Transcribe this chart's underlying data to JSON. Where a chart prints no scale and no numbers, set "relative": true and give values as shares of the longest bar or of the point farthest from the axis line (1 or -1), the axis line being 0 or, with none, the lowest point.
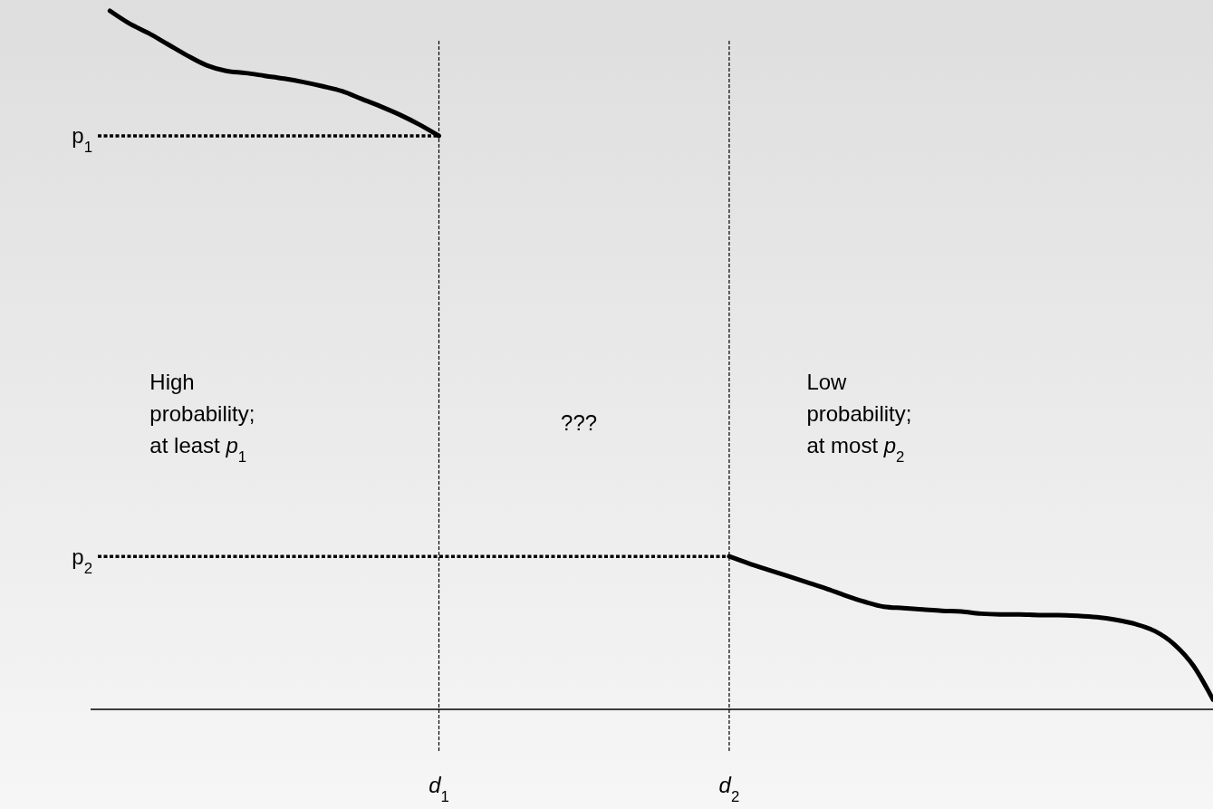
{
  "chart_data": {
    "type": "line",
    "relative": true,
    "categories": [
      null,
      null,
      null,
      null,
      null,
      null,
      null,
      null,
      null,
      null,
      null,
      null,
      null,
      null,
      null,
      null,
      null,
      null,
      "d$_{1}$",
      null,
      null,
      null,
      null,
      null,
      null,
      null,
      null,
      null,
      null,
      null,
      null,
      null,
      null,
      "d$_{2}$",
      null,
      null,
      null,
      null,
      null,
      null,
      null,
      null,
      null,
      null,
      null,
      null,
      null,
      null,
      null,
      null,
      null,
      null,
      null,
      null,
      null,
      null,
      null,
      null,
      null
    ],
    "series": [
      {
        "color": "#000000",
        "line_style": "solid",
        "values": [
          null,
          1.0,
          0.982,
          0.968,
          0.952,
          0.936,
          0.922,
          0.914,
          0.911,
          0.907,
          0.903,
          0.898,
          0.892,
          0.885,
          0.874,
          0.863,
          0.851,
          0.837,
          0.821,
          null,
          null,
          null,
          null,
          null,
          null,
          null,
          null,
          null,
          null,
          null,
          null,
          null,
          null,
          null,
          null,
          null,
          null,
          null,
          null,
          null,
          null,
          null,
          null,
          null,
          null,
          null,
          null,
          null,
          null,
          null,
          null,
          null,
          null,
          null,
          null,
          null,
          null,
          null,
          null
        ]
      },
      {
        "color": "#000000",
        "line_style": "solid",
        "values": [
          null,
          null,
          null,
          null,
          null,
          null,
          null,
          null,
          null,
          null,
          null,
          null,
          null,
          null,
          null,
          null,
          null,
          null,
          null,
          null,
          null,
          null,
          null,
          null,
          null,
          null,
          null,
          null,
          null,
          null,
          null,
          null,
          null,
          0.219,
          0.209,
          0.2,
          0.191,
          0.182,
          0.173,
          0.163,
          0.154,
          0.147,
          0.145,
          0.143,
          0.141,
          0.14,
          0.137,
          0.136,
          0.136,
          0.135,
          0.135,
          0.134,
          0.132,
          0.128,
          0.122,
          0.112,
          0.093,
          0.062,
          0.014
        ]
      }
    ],
    "ref_lines": [
      {
        "axis": "x",
        "value": "d$_{1}$",
        "line_style": "dashed",
        "color": "#000000"
      },
      {
        "axis": "x",
        "value": "d$_{2}$",
        "line_style": "dashed",
        "color": "#000000"
      },
      {
        "axis": "y",
        "value": 0.821,
        "label": "p$_{1}$",
        "line_style": "dotted",
        "color": "#000000"
      },
      {
        "axis": "y",
        "value": 0.219,
        "label": "p$_{2}$",
        "line_style": "dotted",
        "color": "#000000"
      }
    ],
    "annotations": [
      "High\nprobability;\nat least p$_{1}$",
      "???",
      "Low\nprobability;\nat most p$_{2}$"
    ],
    "grid": false
  }
}
